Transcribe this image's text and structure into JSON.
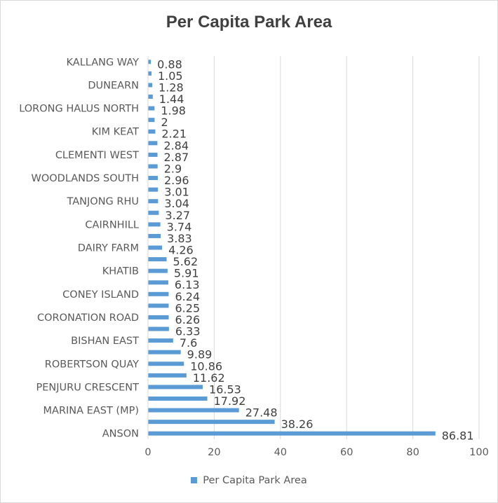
{
  "chart_data": {
    "type": "bar",
    "orientation": "horizontal",
    "title": "Per Capita Park Area",
    "xlabel": "",
    "ylabel": "",
    "xlim": [
      0,
      100
    ],
    "x_ticks": [
      0,
      20,
      40,
      60,
      80,
      100
    ],
    "grid": "vertical",
    "legend_position": "bottom",
    "bar_color": "#5b9bd5",
    "categories": [
      "ANSON",
      "",
      "MARINA EAST (MP)",
      "",
      "PENJURU CRESCENT",
      "",
      "ROBERTSON QUAY",
      "",
      "BISHAN EAST",
      "",
      "CORONATION ROAD",
      "",
      "CONEY ISLAND",
      "",
      "KHATIB",
      "",
      "DAIRY FARM",
      "",
      "CAIRNHILL",
      "",
      "TANJONG RHU",
      "",
      "WOODLANDS SOUTH",
      "",
      "CLEMENTI WEST",
      "",
      "KIM KEAT",
      "",
      "LORONG HALUS NORTH",
      "",
      "DUNEARN",
      "",
      "KALLANG WAY"
    ],
    "series": [
      {
        "name": "Per Capita Park Area",
        "values": [
          86.81,
          38.26,
          27.48,
          17.92,
          16.53,
          11.62,
          10.86,
          9.89,
          7.6,
          6.33,
          6.26,
          6.25,
          6.24,
          6.13,
          5.91,
          5.62,
          4.26,
          3.83,
          3.74,
          3.27,
          3.04,
          3.01,
          2.96,
          2.9,
          2.87,
          2.84,
          2.21,
          2,
          1.98,
          1.44,
          1.28,
          1.05,
          0.88
        ]
      }
    ]
  }
}
